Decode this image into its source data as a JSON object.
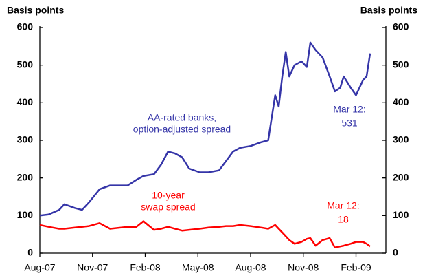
{
  "chart_data": {
    "type": "line",
    "y_label_left": "Basis points",
    "y_label_right": "Basis points",
    "x": [
      0,
      0.5,
      1.1,
      1.4,
      2.0,
      2.4,
      2.8,
      3.4,
      4.0,
      5.0,
      5.5,
      5.9,
      6.5,
      6.9,
      7.3,
      7.7,
      8.1,
      8.5,
      9.1,
      9.6,
      10.2,
      10.6,
      11.0,
      11.4,
      12.0,
      12.6,
      13.0,
      13.2,
      13.4,
      13.6,
      13.8,
      14.0,
      14.2,
      14.5,
      14.9,
      15.2,
      15.4,
      15.7,
      16.1,
      16.5,
      16.8,
      17.1,
      17.3,
      17.7,
      18.0,
      18.4,
      18.6,
      18.8
    ],
    "series": [
      {
        "color": "#3535a8",
        "values": [
          100,
          103,
          115,
          130,
          120,
          115,
          135,
          170,
          180,
          180,
          195,
          205,
          210,
          235,
          270,
          265,
          255,
          225,
          215,
          215,
          220,
          245,
          270,
          280,
          285,
          295,
          300,
          360,
          420,
          390,
          470,
          535,
          470,
          500,
          510,
          495,
          560,
          540,
          520,
          470,
          430,
          440,
          470,
          440,
          420,
          460,
          470,
          531
        ]
      },
      {
        "color": "#ff0000",
        "values": [
          75,
          70,
          65,
          65,
          68,
          70,
          72,
          80,
          65,
          70,
          70,
          85,
          62,
          65,
          70,
          65,
          60,
          62,
          65,
          68,
          70,
          72,
          72,
          75,
          72,
          68,
          65,
          70,
          75,
          65,
          55,
          45,
          35,
          25,
          30,
          38,
          40,
          20,
          35,
          40,
          15,
          18,
          20,
          25,
          30,
          30,
          25,
          18
        ]
      }
    ],
    "xlim": [
      0,
      19.7
    ],
    "xticks": [
      {
        "value": 0,
        "label": "Aug-07"
      },
      {
        "value": 3,
        "label": "Nov-07"
      },
      {
        "value": 6,
        "label": "Feb-08"
      },
      {
        "value": 9,
        "label": "May-08"
      },
      {
        "value": 12,
        "label": "Aug-08"
      },
      {
        "value": 15,
        "label": "Nov-08"
      },
      {
        "value": 18,
        "label": "Feb-09"
      }
    ],
    "ylim": [
      0,
      600
    ],
    "yticks": [
      0,
      100,
      200,
      300,
      400,
      500,
      600
    ],
    "annotations": [
      {
        "text": "AA-rated banks,",
        "color": "#3535a8"
      },
      {
        "text": "option-adjusted spread",
        "color": "#3535a8"
      },
      {
        "text": "10-year",
        "color": "#ff0000"
      },
      {
        "text": "swap spread",
        "color": "#ff0000"
      },
      {
        "text": "Mar 12:",
        "color": "#3535a8"
      },
      {
        "text": "531",
        "color": "#3535a8"
      },
      {
        "text": "Mar 12:",
        "color": "#ff0000"
      },
      {
        "text": "18",
        "color": "#ff0000"
      }
    ]
  }
}
